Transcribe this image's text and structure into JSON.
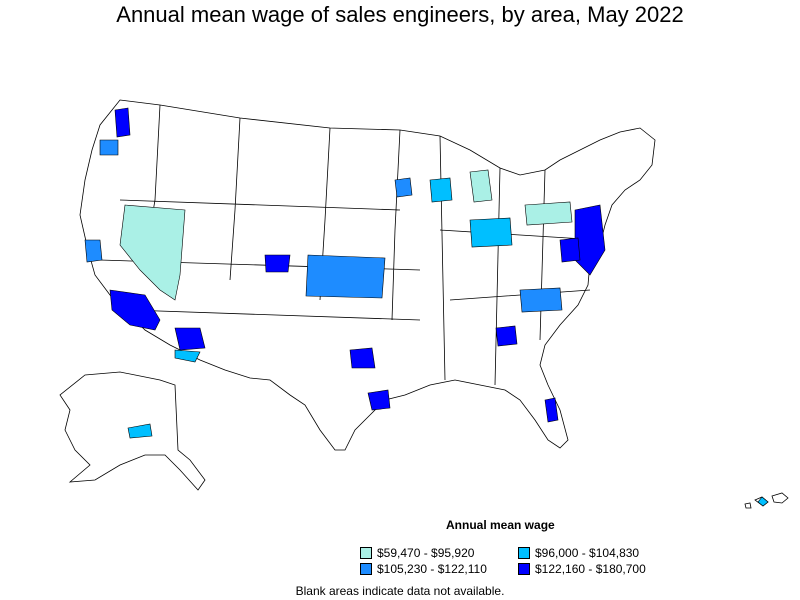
{
  "title": "Annual mean wage of sales engineers, by area, May 2022",
  "legend": {
    "title": "Annual mean wage",
    "items": [
      {
        "label": "$59,470 - $95,920",
        "color": "#aaf0e6"
      },
      {
        "label": "$96,000 - $104,830",
        "color": "#00bfff"
      },
      {
        "label": "$105,230 - $122,110",
        "color": "#1e8cff"
      },
      {
        "label": "$122,160 - $180,700",
        "color": "#0000ff"
      }
    ]
  },
  "note": "Blank areas indicate data not available."
}
